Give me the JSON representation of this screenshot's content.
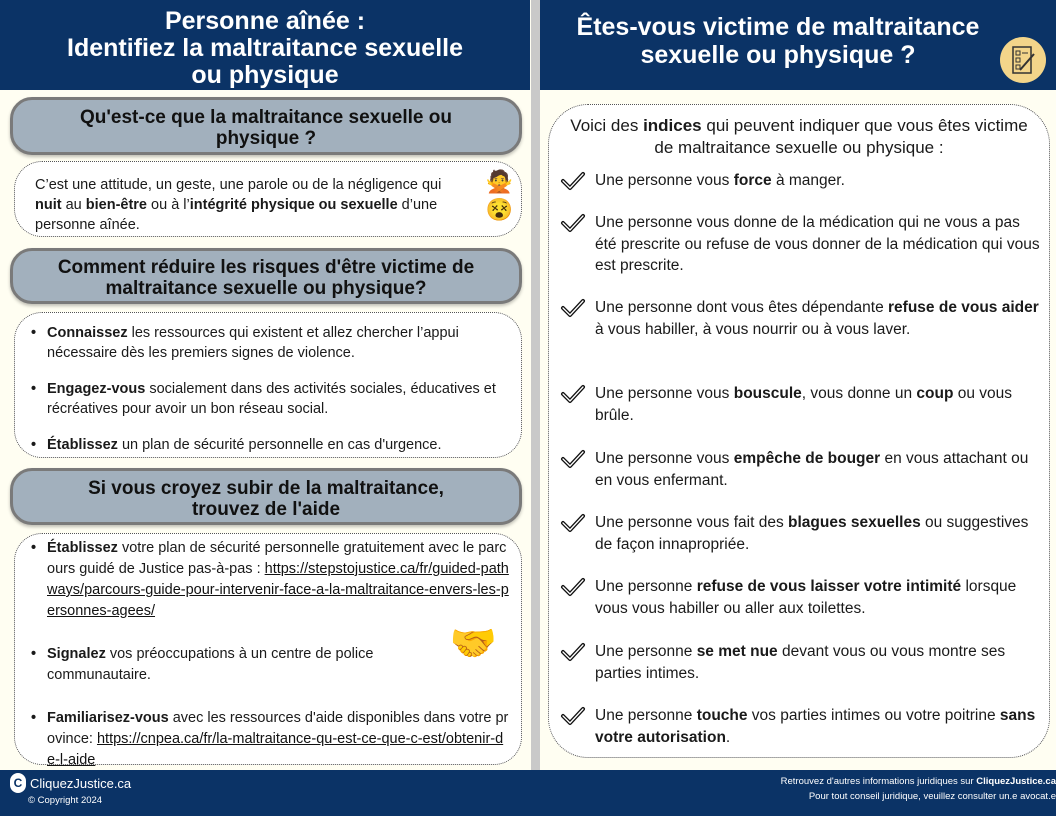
{
  "left": {
    "title_lines": [
      "Personne aînée :",
      "Identifiez la maltraitance sexuelle",
      "ou physique"
    ],
    "section1": {
      "heading": "Qu'est-ce que la maltraitance sexuelle ou physique ?",
      "text": [
        {
          "t": "C’est une attitude, un geste, une parole ou de la négligence qui "
        },
        {
          "t": "nuit",
          "b": true
        },
        {
          "t": " au "
        },
        {
          "t": "bien-être",
          "b": true
        },
        {
          "t": " ou à l’"
        },
        {
          "t": "intégrité physique ou sexuelle",
          "b": true
        },
        {
          "t": " d’une personne aînée."
        }
      ]
    },
    "section2": {
      "heading": "Comment réduire les risques d'être victime de maltraitance sexuelle ou physique?",
      "items": [
        [
          {
            "t": "Connaissez",
            "b": true
          },
          {
            "t": " les ressources qui existent et allez chercher l’appui nécessaire dès les premiers signes de violence."
          }
        ],
        [
          {
            "t": "Engagez-vous",
            "b": true
          },
          {
            "t": " socialement dans des activités sociales, éducatives et récréatives pour avoir un bon réseau social."
          }
        ],
        [
          {
            "t": "Établissez",
            "b": true
          },
          {
            "t": " un plan de sécurité personnelle en cas d'urgence."
          }
        ]
      ]
    },
    "section3": {
      "heading": "Si vous croyez subir de la maltraitance, trouvez de l'aide",
      "items": [
        [
          {
            "t": "Établissez",
            "b": true
          },
          {
            "t": " votre plan de sécurité personnelle gratuitement avec le parcours guidé de Justice pas-à-pas : "
          },
          {
            "t": "https://stepstojustice.ca/fr/guided-pathways/parcours-guide-pour-intervenir-face-a-la-maltraitance-envers-les-personnes-agees/",
            "a": true
          }
        ],
        [
          {
            "t": "Signalez",
            "b": true
          },
          {
            "t": " vos préoccupations à un centre de police communautaire."
          }
        ],
        [
          {
            "t": "Familiarisez-vous",
            "b": true
          },
          {
            "t": " avec les ressources d'aide disponibles dans votre province: "
          },
          {
            "t": "https://cnpea.ca/fr/la-maltraitance-qu-est-ce-que-c-est/obtenir-de-l-aide",
            "a": true
          }
        ]
      ]
    }
  },
  "right": {
    "title_lines": [
      "Êtes-vous victime de maltraitance",
      "sexuelle ou physique ?"
    ],
    "intro": [
      {
        "t": "Voici des "
      },
      {
        "t": "indices",
        "b": true
      },
      {
        "t": " qui peuvent indiquer que vous êtes victime de maltraitance sexuelle ou physique :"
      }
    ],
    "items": [
      [
        {
          "t": "Une personne vous "
        },
        {
          "t": "force",
          "b": true
        },
        {
          "t": " à manger."
        }
      ],
      [
        {
          "t": "Une personne vous donne de la médication qui ne vous a pas été prescrite ou refuse de vous donner de la médication qui vous est prescrite."
        }
      ],
      [
        {
          "t": "Une personne dont vous êtes dépendante "
        },
        {
          "t": "refuse de vous aider",
          "b": true
        },
        {
          "t": " à vous habiller, à vous nourrir ou à vous laver."
        }
      ],
      [
        {
          "t": "Une personne vous "
        },
        {
          "t": "bouscule",
          "b": true
        },
        {
          "t": ", vous donne un "
        },
        {
          "t": "coup",
          "b": true
        },
        {
          "t": " ou vous brûle."
        }
      ],
      [
        {
          "t": "Une personne vous "
        },
        {
          "t": "empêche de bouger",
          "b": true
        },
        {
          "t": " en vous attachant ou en vous enfermant."
        }
      ],
      [
        {
          "t": "Une personne vous fait des "
        },
        {
          "t": "blagues sexuelles",
          "b": true
        },
        {
          "t": " ou suggestives de façon innapropriée."
        }
      ],
      [
        {
          "t": "Une personne "
        },
        {
          "t": "refuse de vous laisser votre intimité",
          "b": true
        },
        {
          "t": " lorsque vous vous habiller ou aller aux toilettes."
        }
      ],
      [
        {
          "t": "Une personne "
        },
        {
          "t": "se met nue",
          "b": true
        },
        {
          "t": " devant vous ou vous montre ses parties intimes."
        }
      ],
      [
        {
          "t": "Une personne "
        },
        {
          "t": "touche",
          "b": true
        },
        {
          "t": " vos parties intimes ou votre poitrine "
        },
        {
          "t": "sans votre autorisation",
          "b": true
        },
        {
          "t": "."
        }
      ]
    ]
  },
  "footer": {
    "logo": "CliquezJustice.ca",
    "copyright": "Copyright 2024",
    "line1_prefix": "Retrouvez d'autres informations juridiques sur ",
    "line1_link": "CliquezJustice.ca",
    "line2": "Pour tout conseil juridique, veuillez consulter un.e avocat.e"
  },
  "colors": {
    "header": "#0b3366",
    "pill": "#a2b0bd",
    "background": "#fffef2",
    "icon_badge": "#f3d58a"
  }
}
